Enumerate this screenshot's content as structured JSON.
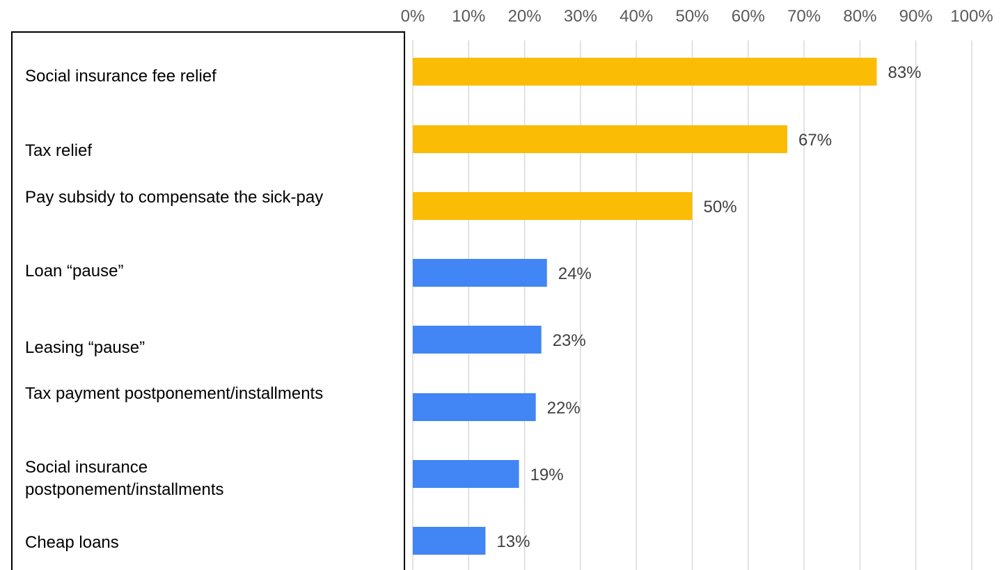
{
  "chart_data": {
    "type": "bar",
    "orientation": "horizontal",
    "categories": [
      "Social insurance fee relief",
      "Tax relief",
      "Pay subsidy to compensate the sick-pay",
      "Loan “pause”",
      "Leasing “pause”",
      "Tax payment postponement/installments",
      "Social insurance postponement/installments",
      "Cheap loans"
    ],
    "values": [
      83,
      67,
      50,
      24,
      23,
      22,
      19,
      13
    ],
    "value_labels": [
      "83%",
      "67%",
      "50%",
      "24%",
      "23%",
      "22%",
      "19%",
      "13%"
    ],
    "bar_colors": [
      "#FBBC05",
      "#FBBC05",
      "#FBBC05",
      "#4285F4",
      "#4285F4",
      "#4285F4",
      "#4285F4",
      "#4285F4"
    ],
    "xlim": [
      0,
      100
    ],
    "x_ticks": [
      "0%",
      "10%",
      "20%",
      "30%",
      "40%",
      "50%",
      "60%",
      "70%",
      "80%",
      "90%",
      "100%"
    ],
    "x_axis_position": "top",
    "grid": true,
    "legend": "none"
  }
}
